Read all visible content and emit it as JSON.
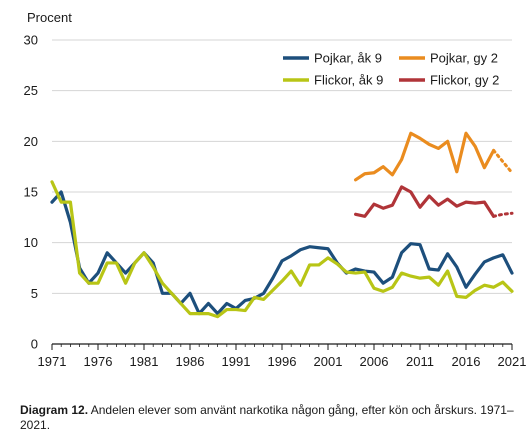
{
  "chart_data": {
    "type": "line",
    "title": "",
    "ylabel": "Procent",
    "xlabel": "",
    "xlim": [
      1971,
      2021
    ],
    "ylim": [
      0,
      30
    ],
    "grid": "horizontal",
    "legend_position": "top-right",
    "x_ticks": [
      "1971",
      "1976",
      "1981",
      "1986",
      "1991",
      "1996",
      "2001",
      "2006",
      "2011",
      "2016",
      "2021"
    ],
    "y_ticks": [
      "0",
      "5",
      "10",
      "15",
      "20",
      "25",
      "30"
    ],
    "series": [
      {
        "name": "Pojkar, åk 9",
        "color": "#1d4f7c",
        "points": [
          [
            1971,
            14
          ],
          [
            1972,
            15
          ],
          [
            1973,
            12
          ],
          [
            1974,
            7.5
          ],
          [
            1975,
            6
          ],
          [
            1976,
            7
          ],
          [
            1977,
            9
          ],
          [
            1978,
            8
          ],
          [
            1979,
            7
          ],
          [
            1980,
            8
          ],
          [
            1981,
            9
          ],
          [
            1982,
            8
          ],
          [
            1983,
            5
          ],
          [
            1984,
            5
          ],
          [
            1985,
            4
          ],
          [
            1986,
            5
          ],
          [
            1987,
            3
          ],
          [
            1988,
            4
          ],
          [
            1989,
            3
          ],
          [
            1990,
            4
          ],
          [
            1991,
            3.5
          ],
          [
            1992,
            4.3
          ],
          [
            1993,
            4.5
          ],
          [
            1994,
            5
          ],
          [
            1995,
            6.5
          ],
          [
            1996,
            8.2
          ],
          [
            1997,
            8.7
          ],
          [
            1998,
            9.3
          ],
          [
            1999,
            9.6
          ],
          [
            2000,
            9.5
          ],
          [
            2001,
            9.4
          ],
          [
            2002,
            8
          ],
          [
            2003,
            7
          ],
          [
            2004,
            7.4
          ],
          [
            2005,
            7.2
          ],
          [
            2006,
            7.1
          ],
          [
            2007,
            6
          ],
          [
            2008,
            6.6
          ],
          [
            2009,
            9
          ],
          [
            2010,
            9.9
          ],
          [
            2011,
            9.8
          ],
          [
            2012,
            7.4
          ],
          [
            2013,
            7.3
          ],
          [
            2014,
            8.9
          ],
          [
            2015,
            7.6
          ],
          [
            2016,
            5.6
          ],
          [
            2017,
            6.9
          ],
          [
            2018,
            8.1
          ],
          [
            2019,
            8.5
          ],
          [
            2020,
            8.8
          ],
          [
            2021,
            7
          ]
        ]
      },
      {
        "name": "Flickor, åk 9",
        "color": "#b8c516",
        "points": [
          [
            1971,
            16
          ],
          [
            1972,
            14
          ],
          [
            1973,
            14
          ],
          [
            1974,
            7
          ],
          [
            1975,
            6
          ],
          [
            1976,
            6
          ],
          [
            1977,
            8
          ],
          [
            1978,
            8
          ],
          [
            1979,
            6
          ],
          [
            1980,
            8
          ],
          [
            1981,
            9
          ],
          [
            1982,
            7.6
          ],
          [
            1983,
            6
          ],
          [
            1984,
            5
          ],
          [
            1985,
            4
          ],
          [
            1986,
            3
          ],
          [
            1987,
            3
          ],
          [
            1988,
            3
          ],
          [
            1989,
            2.7
          ],
          [
            1990,
            3.4
          ],
          [
            1991,
            3.4
          ],
          [
            1992,
            3.3
          ],
          [
            1993,
            4.6
          ],
          [
            1994,
            4.4
          ],
          [
            1995,
            5.3
          ],
          [
            1996,
            6.2
          ],
          [
            1997,
            7.2
          ],
          [
            1998,
            5.8
          ],
          [
            1999,
            7.8
          ],
          [
            2000,
            7.8
          ],
          [
            2001,
            8.5
          ],
          [
            2002,
            7.9
          ],
          [
            2003,
            7.1
          ],
          [
            2004,
            7
          ],
          [
            2005,
            7.1
          ],
          [
            2006,
            5.5
          ],
          [
            2007,
            5.2
          ],
          [
            2008,
            5.6
          ],
          [
            2009,
            7
          ],
          [
            2010,
            6.7
          ],
          [
            2011,
            6.5
          ],
          [
            2012,
            6.6
          ],
          [
            2013,
            5.8
          ],
          [
            2014,
            7.2
          ],
          [
            2015,
            4.7
          ],
          [
            2016,
            4.6
          ],
          [
            2017,
            5.3
          ],
          [
            2018,
            5.8
          ],
          [
            2019,
            5.6
          ],
          [
            2020,
            6.1
          ],
          [
            2021,
            5.2
          ]
        ]
      },
      {
        "name": "Pojkar, gy 2",
        "color": "#ea8c1f",
        "points": [
          [
            2004,
            16.2
          ],
          [
            2005,
            16.8
          ],
          [
            2006,
            16.9
          ],
          [
            2007,
            17.5
          ],
          [
            2008,
            16.7
          ],
          [
            2009,
            18.2
          ],
          [
            2010,
            20.8
          ],
          [
            2011,
            20.3
          ],
          [
            2012,
            19.7
          ],
          [
            2013,
            19.3
          ],
          [
            2014,
            20
          ],
          [
            2015,
            17
          ],
          [
            2016,
            20.8
          ],
          [
            2017,
            19.5
          ],
          [
            2018,
            17.4
          ],
          [
            2019,
            19.1
          ]
        ],
        "dotted_points": [
          [
            2019,
            19.1
          ],
          [
            2020,
            18
          ],
          [
            2021,
            16.9
          ]
        ]
      },
      {
        "name": "Flickor, gy 2",
        "color": "#b03438",
        "points": [
          [
            2004,
            12.8
          ],
          [
            2005,
            12.6
          ],
          [
            2006,
            13.8
          ],
          [
            2007,
            13.4
          ],
          [
            2008,
            13.7
          ],
          [
            2009,
            15.5
          ],
          [
            2010,
            15
          ],
          [
            2011,
            13.5
          ],
          [
            2012,
            14.6
          ],
          [
            2013,
            13.7
          ],
          [
            2014,
            14.3
          ],
          [
            2015,
            13.6
          ],
          [
            2016,
            14
          ],
          [
            2017,
            13.9
          ],
          [
            2018,
            14
          ],
          [
            2019,
            12.6
          ]
        ],
        "dotted_points": [
          [
            2019,
            12.6
          ],
          [
            2020,
            12.8
          ],
          [
            2021,
            12.9
          ]
        ]
      }
    ]
  },
  "caption": {
    "label": "Diagram 12.",
    "text": " Andelen elever som använt narkotika någon gång, efter kön och årskurs. 1971–2021."
  }
}
